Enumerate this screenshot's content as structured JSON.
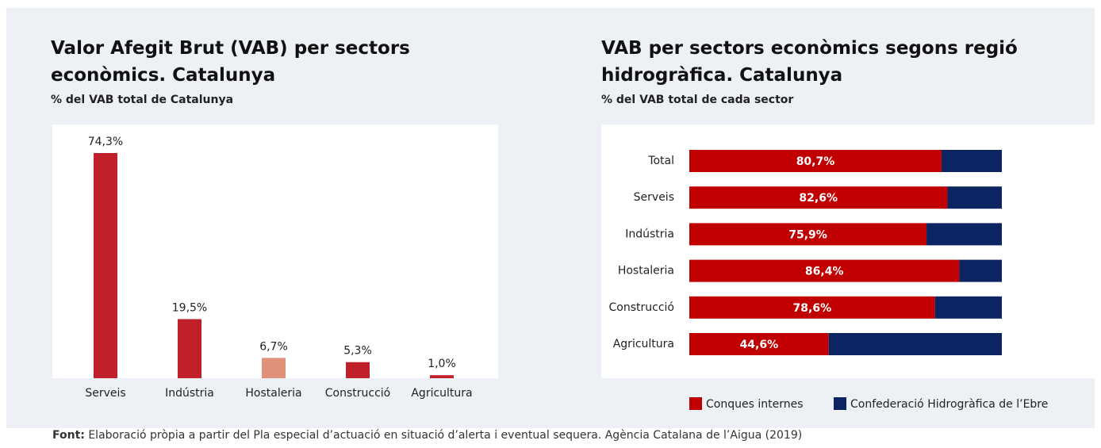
{
  "charts": [
    {
      "chart_data": {
        "type": "bar",
        "title": "Valor Afegit Brut (VAB) per sectors econòmics. Catalunya",
        "subtitle": "% del VAB total de Catalunya",
        "categories": [
          "Serveis",
          "Indústria",
          "Hostaleria",
          "Construcció",
          "Agricultura"
        ],
        "values": [
          74.3,
          19.5,
          6.7,
          5.3,
          1.0
        ],
        "value_labels": [
          "74,3%",
          "19,5%",
          "6,7%",
          "5,3%",
          "1,0%"
        ],
        "colors": [
          "#c0202a",
          "#c0202a",
          "#e0917a",
          "#c0202a",
          "#c0202a"
        ]
      }
    },
    {
      "chart_data": {
        "type": "stacked-hbar",
        "title": "VAB per sectors econòmics segons regió hidrogràfica. Catalunya",
        "subtitle": "% del VAB total de cada sector",
        "categories": [
          "Total",
          "Serveis",
          "Indústria",
          "Hostaleria",
          "Construcció",
          "Agricultura"
        ],
        "series": [
          {
            "name": "Conques internes",
            "color": "#c00000",
            "values": [
              80.7,
              82.6,
              75.9,
              86.4,
              78.6,
              44.6
            ],
            "value_labels": [
              "80,7%",
              "82,6%",
              "75,9%",
              "86,4%",
              "78,6%",
              "44,6%"
            ]
          },
          {
            "name": "Confederació Hidrogràfica de l’Ebre",
            "color": "#0c2461",
            "values": [
              19.3,
              17.4,
              24.1,
              13.6,
              21.4,
              55.4
            ]
          }
        ]
      }
    }
  ],
  "footer": {
    "label": "Font:",
    "text": "Elaboració pròpia a partir del Pla especial d’actuació en situació d’alerta i eventual sequera. Agència Catalana de l’Aigua (2019)"
  }
}
